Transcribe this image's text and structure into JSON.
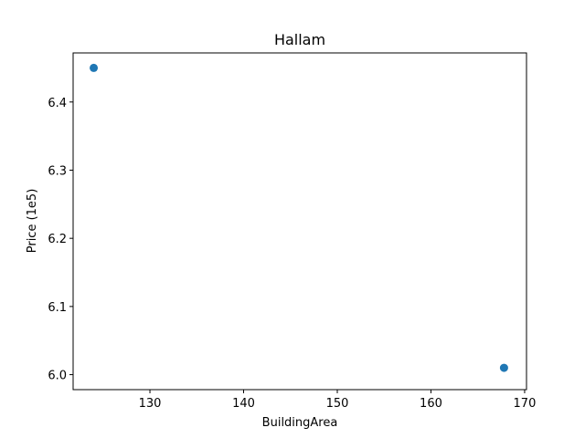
{
  "chart_data": {
    "type": "scatter",
    "title": "Hallam",
    "xlabel": "BuildingArea",
    "ylabel": "Price (1e5)",
    "xlim": [
      121.8,
      170.2
    ],
    "ylim": [
      5.978,
      6.472
    ],
    "xticks": [
      130,
      140,
      150,
      160,
      170
    ],
    "yticks": [
      6.0,
      6.1,
      6.2,
      6.3,
      6.4
    ],
    "xtick_labels": [
      "130",
      "140",
      "150",
      "160",
      "170"
    ],
    "ytick_labels": [
      "6.0",
      "6.1",
      "6.2",
      "6.3",
      "6.4"
    ],
    "grid": false,
    "marker_color": "#1f77b4",
    "points": [
      {
        "x": 124.0,
        "y": 6.45
      },
      {
        "x": 167.8,
        "y": 6.01
      }
    ]
  }
}
